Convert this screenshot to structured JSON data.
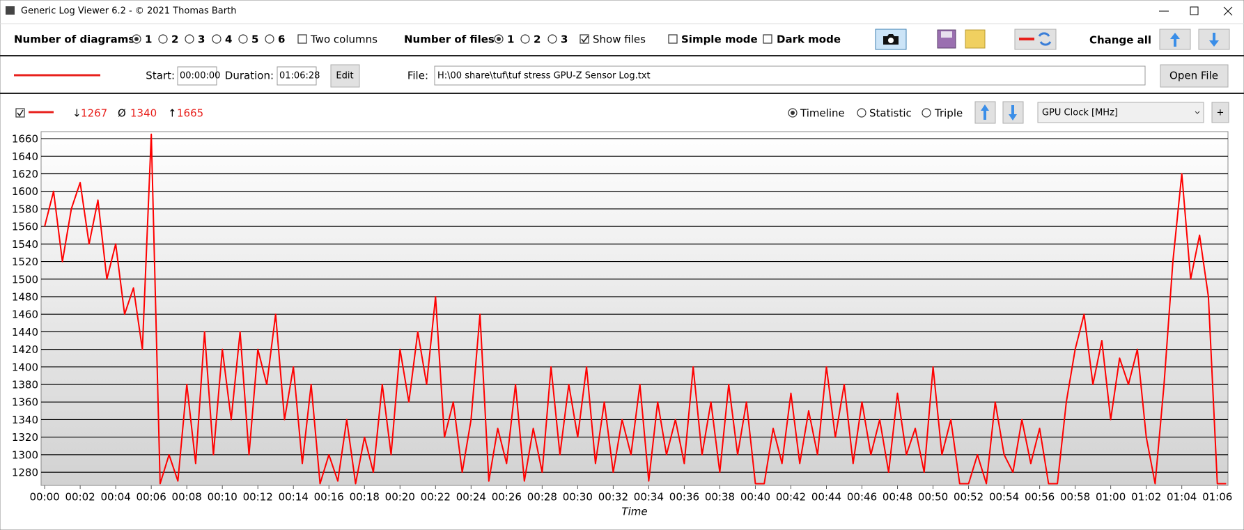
{
  "window": {
    "title": "Generic Log Viewer 6.2 - © 2021 Thomas Barth"
  },
  "toolbar": {
    "diagrams_label": "Number of diagrams",
    "diagram_options": [
      "1",
      "2",
      "3",
      "4",
      "5",
      "6"
    ],
    "two_columns": "Two columns",
    "files_label": "Number of files",
    "file_options": [
      "1",
      "2",
      "3"
    ],
    "show_files": "Show files",
    "simple_mode": "Simple mode",
    "dark_mode": "Dark mode",
    "change_all": "Change all"
  },
  "file_row": {
    "start_label": "Start:",
    "start": "00:00:00",
    "duration_label": "Duration:",
    "duration": "01:06:28",
    "edit": "Edit",
    "file_label": "File:",
    "file_path": "H:\\00 share\\tuf\\tuf stress GPU-Z Sensor Log.txt",
    "open_file": "Open File"
  },
  "stats": {
    "min_symbol": "↓",
    "min": 1267,
    "avg_symbol": "Ø",
    "avg": 1340,
    "max_symbol": "↑",
    "max": 1665
  },
  "view_modes": [
    "Timeline",
    "Statistic",
    "Triple"
  ],
  "add_diagram": "+",
  "chart_data": {
    "type": "line",
    "x_label": "Time",
    "x": [
      0,
      0.5,
      1,
      1.5,
      2,
      2.5,
      3,
      3.5,
      4,
      4.5,
      5,
      5.5,
      6,
      6.5,
      7,
      7.5,
      8,
      8.5,
      9,
      9.5,
      10,
      10.5,
      11,
      11.5,
      12,
      12.5,
      13,
      13.5,
      14,
      14.5,
      15,
      15.5,
      16,
      16.5,
      17,
      17.5,
      18,
      18.5,
      19,
      19.5,
      20,
      20.5,
      21,
      21.5,
      22,
      22.5,
      23,
      23.5,
      24,
      24.5,
      25,
      25.5,
      26,
      26.5,
      27,
      27.5,
      28,
      28.5,
      29,
      29.5,
      30,
      30.5,
      31,
      31.5,
      32,
      32.5,
      33,
      33.5,
      34,
      34.5,
      35,
      35.5,
      36,
      36.5,
      37,
      37.5,
      38,
      38.5,
      39,
      39.5,
      40,
      40.5,
      41,
      41.5,
      42,
      42.5,
      43,
      43.5,
      44,
      44.5,
      45,
      45.5,
      46,
      46.5,
      47,
      47.5,
      48,
      48.5,
      49,
      49.5,
      50,
      50.5,
      51,
      51.5,
      52,
      52.5,
      53,
      53.5,
      54,
      54.5,
      55,
      55.5,
      56,
      56.5,
      57,
      57.5,
      58,
      58.5,
      59,
      59.5,
      60,
      60.5,
      61,
      61.5,
      62,
      62.5,
      63,
      63.5,
      64,
      64.5,
      65,
      65.5,
      66,
      66.5
    ],
    "series": [
      {
        "name": "GPU Clock [MHz]",
        "color": "#ff0000",
        "values": [
          1560,
          1600,
          1520,
          1580,
          1610,
          1540,
          1590,
          1500,
          1540,
          1460,
          1490,
          1420,
          1665,
          1267,
          1300,
          1270,
          1380,
          1290,
          1440,
          1300,
          1420,
          1340,
          1440,
          1300,
          1420,
          1380,
          1460,
          1340,
          1400,
          1290,
          1380,
          1267,
          1300,
          1270,
          1340,
          1267,
          1320,
          1280,
          1380,
          1300,
          1420,
          1360,
          1440,
          1380,
          1480,
          1320,
          1360,
          1280,
          1340,
          1460,
          1270,
          1330,
          1290,
          1380,
          1270,
          1330,
          1280,
          1400,
          1300,
          1380,
          1320,
          1400,
          1290,
          1360,
          1280,
          1340,
          1300,
          1380,
          1270,
          1360,
          1300,
          1340,
          1290,
          1400,
          1300,
          1360,
          1280,
          1380,
          1300,
          1360,
          1267,
          1267,
          1330,
          1290,
          1370,
          1290,
          1350,
          1300,
          1400,
          1320,
          1380,
          1290,
          1360,
          1300,
          1340,
          1280,
          1370,
          1300,
          1330,
          1280,
          1400,
          1300,
          1340,
          1267,
          1267,
          1300,
          1267,
          1360,
          1300,
          1280,
          1340,
          1290,
          1330,
          1267,
          1267,
          1360,
          1420,
          1460,
          1380,
          1430,
          1340,
          1410,
          1380,
          1420,
          1320,
          1267,
          1380,
          1520,
          1620,
          1500,
          1550,
          1480,
          1267,
          1267
        ]
      }
    ],
    "xlim": [
      -0.2,
      66.6
    ],
    "xticks": [
      {
        "value": 0,
        "label": "00:00"
      },
      {
        "value": 2,
        "label": "00:02"
      },
      {
        "value": 4,
        "label": "00:04"
      },
      {
        "value": 6,
        "label": "00:06"
      },
      {
        "value": 8,
        "label": "00:08"
      },
      {
        "value": 10,
        "label": "00:10"
      },
      {
        "value": 12,
        "label": "00:12"
      },
      {
        "value": 14,
        "label": "00:14"
      },
      {
        "value": 16,
        "label": "00:16"
      },
      {
        "value": 18,
        "label": "00:18"
      },
      {
        "value": 20,
        "label": "00:20"
      },
      {
        "value": 22,
        "label": "00:22"
      },
      {
        "value": 24,
        "label": "00:24"
      },
      {
        "value": 26,
        "label": "00:26"
      },
      {
        "value": 28,
        "label": "00:28"
      },
      {
        "value": 30,
        "label": "00:30"
      },
      {
        "value": 32,
        "label": "00:32"
      },
      {
        "value": 34,
        "label": "00:34"
      },
      {
        "value": 36,
        "label": "00:36"
      },
      {
        "value": 38,
        "label": "00:38"
      },
      {
        "value": 40,
        "label": "00:40"
      },
      {
        "value": 42,
        "label": "00:42"
      },
      {
        "value": 44,
        "label": "00:44"
      },
      {
        "value": 46,
        "label": "00:46"
      },
      {
        "value": 48,
        "label": "00:48"
      },
      {
        "value": 50,
        "label": "00:50"
      },
      {
        "value": 52,
        "label": "00:52"
      },
      {
        "value": 54,
        "label": "00:54"
      },
      {
        "value": 56,
        "label": "00:56"
      },
      {
        "value": 58,
        "label": "00:58"
      },
      {
        "value": 60,
        "label": "01:00"
      },
      {
        "value": 62,
        "label": "01:02"
      },
      {
        "value": 64,
        "label": "01:04"
      },
      {
        "value": 66,
        "label": "01:06"
      }
    ],
    "ylim": [
      1265,
      1668
    ],
    "yticks": [
      1280,
      1300,
      1320,
      1340,
      1360,
      1380,
      1400,
      1420,
      1440,
      1460,
      1480,
      1500,
      1520,
      1540,
      1560,
      1580,
      1600,
      1620,
      1640,
      1660
    ],
    "grid": true
  }
}
